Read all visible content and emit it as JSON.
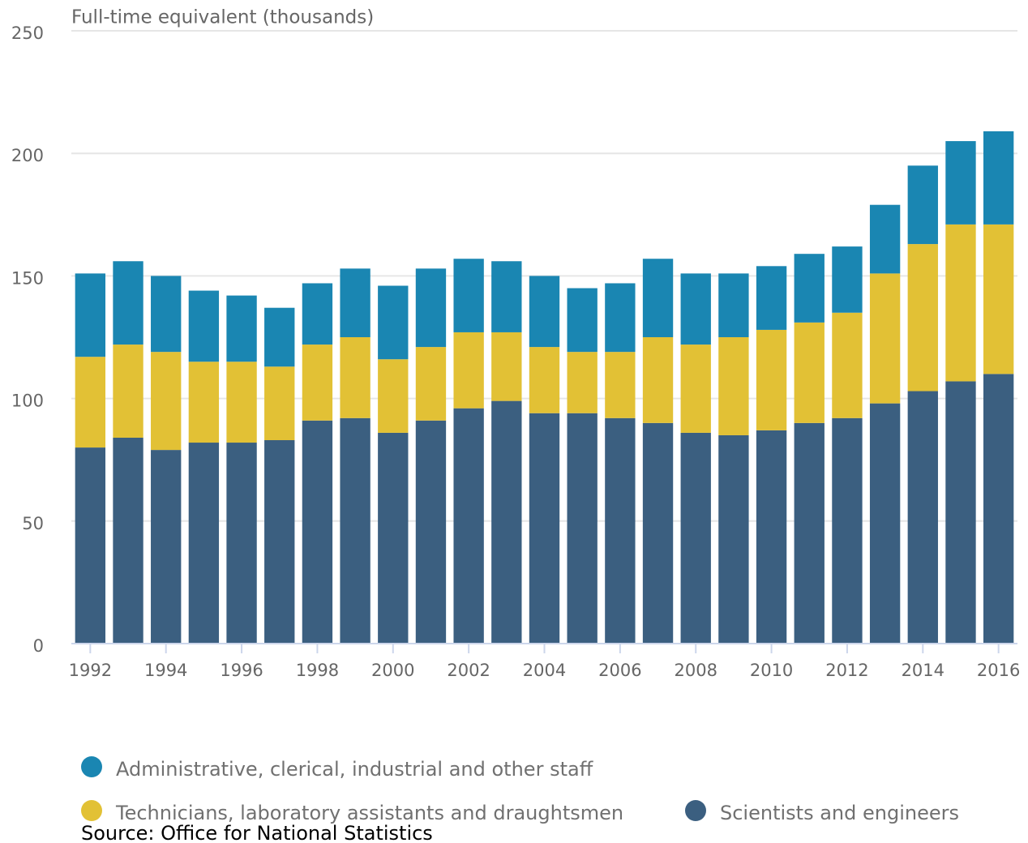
{
  "chart_data": {
    "type": "stacked_bar",
    "y_axis_label": "Full-time equivalent (thousands)",
    "source": "Source: Office for National Statistics",
    "categories": [
      "1992",
      null,
      "1994",
      null,
      "1996",
      null,
      "1998",
      null,
      "2000",
      null,
      "2002",
      null,
      "2004",
      null,
      "2006",
      null,
      "2008",
      null,
      "2010",
      null,
      "2012",
      null,
      "2014",
      null,
      "2016"
    ],
    "series": [
      {
        "name": "Administrative, clerical, industrial and other staff",
        "color": "#1a86b2",
        "values": [
          34,
          34,
          31,
          29,
          27,
          24,
          25,
          28,
          30,
          32,
          30,
          29,
          29,
          26,
          28,
          32,
          29,
          26,
          26,
          28,
          27,
          28,
          32,
          34,
          38
        ]
      },
      {
        "name": "Technicians, laboratory assistants and draughtsmen",
        "color": "#e2c135",
        "values": [
          37,
          38,
          40,
          33,
          33,
          30,
          31,
          33,
          30,
          30,
          31,
          28,
          27,
          25,
          27,
          35,
          36,
          40,
          41,
          41,
          43,
          53,
          60,
          64,
          61
        ]
      },
      {
        "name": "Scientists and engineers",
        "color": "#3b5f80",
        "values": [
          80,
          84,
          79,
          82,
          82,
          83,
          91,
          92,
          86,
          91,
          96,
          99,
          94,
          94,
          92,
          90,
          86,
          85,
          87,
          90,
          92,
          98,
          103,
          107,
          110
        ]
      }
    ],
    "ylim": [
      0,
      250
    ],
    "yticks": [
      0,
      50,
      100,
      150,
      200,
      250
    ],
    "grid": true
  }
}
